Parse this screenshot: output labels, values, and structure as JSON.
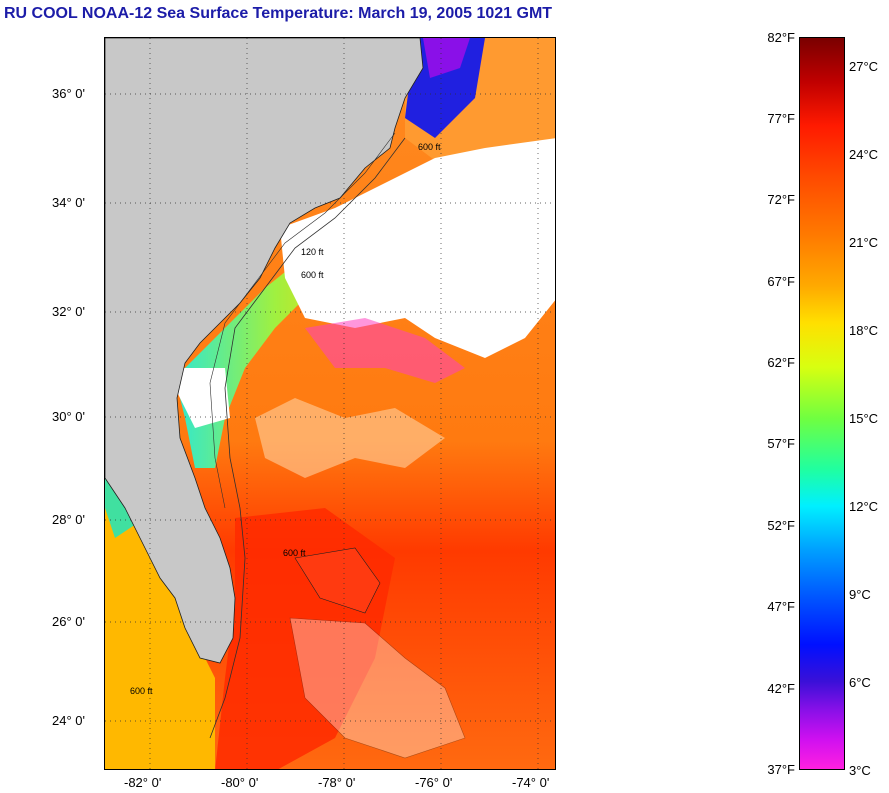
{
  "title": "RU COOL  NOAA-12  Sea Surface Temperature:  March 19, 2005 1021 GMT",
  "map": {
    "latitude_labels": [
      "36° 0'",
      "34° 0'",
      "32° 0'",
      "30° 0'",
      "28° 0'",
      "26° 0'",
      "24° 0'"
    ],
    "longitude_labels": [
      "-82° 0'",
      "-80° 0'",
      "-78° 0'",
      "-76° 0'",
      "-74° 0'"
    ],
    "contour_labels": [
      "600 ft",
      "120 ft",
      "600 ft",
      "600 ft",
      "600 ft"
    ],
    "land_color": "#c8c8c8",
    "cloud_color": "#ffffff",
    "warm_water_color": "#ff5a10",
    "cool_water_color": "#20e0d8"
  },
  "colorbar": {
    "fahrenheit_labels": [
      "82°F",
      "77°F",
      "72°F",
      "67°F",
      "62°F",
      "57°F",
      "52°F",
      "47°F",
      "42°F",
      "37°F"
    ],
    "celsius_labels": [
      "27°C",
      "24°C",
      "21°C",
      "18°C",
      "15°C",
      "12°C",
      "9°C",
      "6°C",
      "3°C"
    ]
  }
}
